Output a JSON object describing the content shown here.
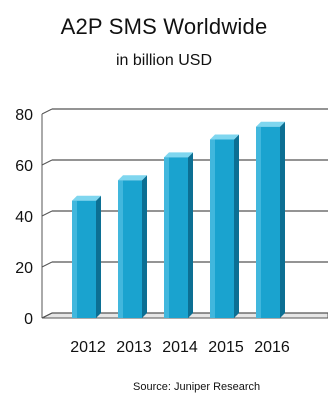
{
  "chart_data": {
    "type": "bar",
    "title": "A2P SMS Worldwide",
    "subtitle": "in billion USD",
    "categories": [
      "2012",
      "2013",
      "2014",
      "2015",
      "2016"
    ],
    "values": [
      46,
      54,
      63,
      70,
      75
    ],
    "xlabel": "",
    "ylabel": "",
    "ylim": [
      0,
      80
    ],
    "yticks": [
      0,
      20,
      40,
      60,
      80
    ],
    "grid": true,
    "legend": "none",
    "colors": {
      "bar_front": "#1aa3cf",
      "bar_side": "#0c6f93",
      "bar_top": "#7fd6ef",
      "grid": "#555555",
      "wall": "#d9d9d9"
    }
  },
  "source": "Source:  Juniper Research"
}
